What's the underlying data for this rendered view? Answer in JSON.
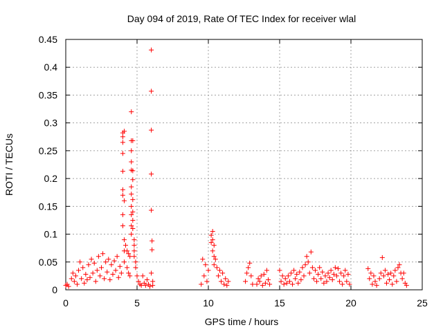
{
  "chart_data": {
    "type": "scatter",
    "title": "Day 094 of 2019, Rate Of TEC Index for receiver wlal",
    "xlabel": "GPS time / hours",
    "ylabel": "ROTI / TECUs",
    "xlim": [
      0,
      25
    ],
    "ylim": [
      0,
      0.45
    ],
    "x_ticks": [
      0,
      5,
      10,
      15,
      20,
      25
    ],
    "y_ticks": [
      0,
      0.05,
      0.1,
      0.15,
      0.2,
      0.25,
      0.3,
      0.35,
      0.4,
      0.45
    ],
    "x_tick_labels": [
      "0",
      "5",
      "10",
      "15",
      "20",
      "25"
    ],
    "y_tick_labels": [
      "0",
      "0.05",
      "0.1",
      "0.15",
      "0.2",
      "0.25",
      "0.3",
      "0.35",
      "0.4",
      "0.45"
    ],
    "grid": true,
    "marker": "+",
    "marker_color": "#ff0000",
    "series": [
      {
        "name": "ROTI",
        "points": [
          [
            0.0,
            0.008
          ],
          [
            0.1,
            0.01
          ],
          [
            0.2,
            0.006
          ],
          [
            0.4,
            0.02
          ],
          [
            0.5,
            0.03
          ],
          [
            0.6,
            0.015
          ],
          [
            0.7,
            0.025
          ],
          [
            0.8,
            0.01
          ],
          [
            0.9,
            0.035
          ],
          [
            1.0,
            0.05
          ],
          [
            1.1,
            0.02
          ],
          [
            1.2,
            0.04
          ],
          [
            1.3,
            0.012
          ],
          [
            1.4,
            0.028
          ],
          [
            1.5,
            0.018
          ],
          [
            1.6,
            0.045
          ],
          [
            1.7,
            0.022
          ],
          [
            1.8,
            0.055
          ],
          [
            1.9,
            0.03
          ],
          [
            2.0,
            0.048
          ],
          [
            2.1,
            0.015
          ],
          [
            2.2,
            0.035
          ],
          [
            2.3,
            0.06
          ],
          [
            2.4,
            0.025
          ],
          [
            2.5,
            0.04
          ],
          [
            2.6,
            0.065
          ],
          [
            2.7,
            0.02
          ],
          [
            2.8,
            0.05
          ],
          [
            2.9,
            0.032
          ],
          [
            3.0,
            0.055
          ],
          [
            3.1,
            0.018
          ],
          [
            3.2,
            0.045
          ],
          [
            3.3,
            0.028
          ],
          [
            3.4,
            0.052
          ],
          [
            3.5,
            0.035
          ],
          [
            3.6,
            0.06
          ],
          [
            3.7,
            0.022
          ],
          [
            3.8,
            0.042
          ],
          [
            3.9,
            0.03
          ],
          [
            4.0,
            0.282
          ],
          [
            4.0,
            0.275
          ],
          [
            4.0,
            0.265
          ],
          [
            4.0,
            0.245
          ],
          [
            4.0,
            0.213
          ],
          [
            4.0,
            0.18
          ],
          [
            4.0,
            0.17
          ],
          [
            4.0,
            0.135
          ],
          [
            4.0,
            0.115
          ],
          [
            4.1,
            0.285
          ],
          [
            4.1,
            0.16
          ],
          [
            4.1,
            0.09
          ],
          [
            4.1,
            0.07
          ],
          [
            4.1,
            0.05
          ],
          [
            4.2,
            0.08
          ],
          [
            4.3,
            0.07
          ],
          [
            4.3,
            0.04
          ],
          [
            4.4,
            0.065
          ],
          [
            4.4,
            0.03
          ],
          [
            4.5,
            0.06
          ],
          [
            4.5,
            0.025
          ],
          [
            4.6,
            0.32
          ],
          [
            4.6,
            0.268
          ],
          [
            4.6,
            0.25
          ],
          [
            4.6,
            0.23
          ],
          [
            4.6,
            0.215
          ],
          [
            4.6,
            0.185
          ],
          [
            4.6,
            0.172
          ],
          [
            4.6,
            0.15
          ],
          [
            4.6,
            0.135
          ],
          [
            4.6,
            0.115
          ],
          [
            4.6,
            0.1
          ],
          [
            4.7,
            0.268
          ],
          [
            4.7,
            0.214
          ],
          [
            4.7,
            0.198
          ],
          [
            4.7,
            0.162
          ],
          [
            4.7,
            0.14
          ],
          [
            4.7,
            0.125
          ],
          [
            4.7,
            0.11
          ],
          [
            4.8,
            0.09
          ],
          [
            4.8,
            0.08
          ],
          [
            4.8,
            0.07
          ],
          [
            4.8,
            0.06
          ],
          [
            4.9,
            0.05
          ],
          [
            4.9,
            0.04
          ],
          [
            5.0,
            0.025
          ],
          [
            5.1,
            0.015
          ],
          [
            5.2,
            0.01
          ],
          [
            5.3,
            0.008
          ],
          [
            5.4,
            0.025
          ],
          [
            5.5,
            0.012
          ],
          [
            5.6,
            0.008
          ],
          [
            5.7,
            0.018
          ],
          [
            5.8,
            0.01
          ],
          [
            5.9,
            0.006
          ],
          [
            6.0,
            0.431
          ],
          [
            6.0,
            0.357
          ],
          [
            6.0,
            0.287
          ],
          [
            6.0,
            0.208
          ],
          [
            6.0,
            0.143
          ],
          [
            6.05,
            0.088
          ],
          [
            6.05,
            0.072
          ],
          [
            6.0,
            0.03
          ],
          [
            6.1,
            0.015
          ],
          [
            6.1,
            0.008
          ],
          [
            9.5,
            0.01
          ],
          [
            9.6,
            0.055
          ],
          [
            9.7,
            0.025
          ],
          [
            9.8,
            0.045
          ],
          [
            9.9,
            0.015
          ],
          [
            10.0,
            0.035
          ],
          [
            10.2,
            0.098
          ],
          [
            10.2,
            0.085
          ],
          [
            10.3,
            0.105
          ],
          [
            10.3,
            0.09
          ],
          [
            10.3,
            0.07
          ],
          [
            10.4,
            0.08
          ],
          [
            10.4,
            0.06
          ],
          [
            10.4,
            0.045
          ],
          [
            10.5,
            0.055
          ],
          [
            10.6,
            0.04
          ],
          [
            10.7,
            0.025
          ],
          [
            10.8,
            0.035
          ],
          [
            10.9,
            0.015
          ],
          [
            11.0,
            0.03
          ],
          [
            11.1,
            0.01
          ],
          [
            11.2,
            0.02
          ],
          [
            11.3,
            0.008
          ],
          [
            11.4,
            0.015
          ],
          [
            12.6,
            0.015
          ],
          [
            12.7,
            0.03
          ],
          [
            12.8,
            0.04
          ],
          [
            12.9,
            0.048
          ],
          [
            13.0,
            0.025
          ],
          [
            13.1,
            0.01
          ],
          [
            13.4,
            0.01
          ],
          [
            13.5,
            0.02
          ],
          [
            13.6,
            0.015
          ],
          [
            13.7,
            0.025
          ],
          [
            13.8,
            0.008
          ],
          [
            13.9,
            0.028
          ],
          [
            14.0,
            0.012
          ],
          [
            14.1,
            0.035
          ],
          [
            14.2,
            0.018
          ],
          [
            14.3,
            0.01
          ],
          [
            15.0,
            0.035
          ],
          [
            15.1,
            0.015
          ],
          [
            15.2,
            0.025
          ],
          [
            15.3,
            0.01
          ],
          [
            15.4,
            0.02
          ],
          [
            15.5,
            0.012
          ],
          [
            15.6,
            0.025
          ],
          [
            15.7,
            0.015
          ],
          [
            15.8,
            0.03
          ],
          [
            15.9,
            0.01
          ],
          [
            16.0,
            0.035
          ],
          [
            16.1,
            0.02
          ],
          [
            16.2,
            0.028
          ],
          [
            16.3,
            0.012
          ],
          [
            16.4,
            0.032
          ],
          [
            16.5,
            0.018
          ],
          [
            16.6,
            0.04
          ],
          [
            16.7,
            0.025
          ],
          [
            16.8,
            0.045
          ],
          [
            16.9,
            0.06
          ],
          [
            17.0,
            0.05
          ],
          [
            17.1,
            0.03
          ],
          [
            17.2,
            0.068
          ],
          [
            17.3,
            0.04
          ],
          [
            17.4,
            0.02
          ],
          [
            17.5,
            0.035
          ],
          [
            17.6,
            0.015
          ],
          [
            17.7,
            0.028
          ],
          [
            17.8,
            0.04
          ],
          [
            17.9,
            0.02
          ],
          [
            18.0,
            0.032
          ],
          [
            18.1,
            0.012
          ],
          [
            18.2,
            0.025
          ],
          [
            18.3,
            0.015
          ],
          [
            18.4,
            0.03
          ],
          [
            18.5,
            0.022
          ],
          [
            18.6,
            0.035
          ],
          [
            18.7,
            0.018
          ],
          [
            18.8,
            0.028
          ],
          [
            18.9,
            0.04
          ],
          [
            19.0,
            0.025
          ],
          [
            19.1,
            0.038
          ],
          [
            19.2,
            0.015
          ],
          [
            19.3,
            0.03
          ],
          [
            19.4,
            0.01
          ],
          [
            19.5,
            0.025
          ],
          [
            19.6,
            0.035
          ],
          [
            19.7,
            0.015
          ],
          [
            19.8,
            0.028
          ],
          [
            19.9,
            0.01
          ],
          [
            21.2,
            0.038
          ],
          [
            21.3,
            0.02
          ],
          [
            21.4,
            0.03
          ],
          [
            21.5,
            0.01
          ],
          [
            21.6,
            0.025
          ],
          [
            21.7,
            0.015
          ],
          [
            21.8,
            0.008
          ],
          [
            22.0,
            0.02
          ],
          [
            22.1,
            0.03
          ],
          [
            22.2,
            0.058
          ],
          [
            22.3,
            0.025
          ],
          [
            22.4,
            0.035
          ],
          [
            22.5,
            0.012
          ],
          [
            22.6,
            0.028
          ],
          [
            22.7,
            0.018
          ],
          [
            22.8,
            0.03
          ],
          [
            22.9,
            0.01
          ],
          [
            23.0,
            0.025
          ],
          [
            23.1,
            0.035
          ],
          [
            23.2,
            0.015
          ],
          [
            23.3,
            0.04
          ],
          [
            23.4,
            0.045
          ],
          [
            23.5,
            0.03
          ],
          [
            23.6,
            0.02
          ],
          [
            23.7,
            0.03
          ],
          [
            23.8,
            0.012
          ],
          [
            23.9,
            0.008
          ]
        ]
      }
    ]
  }
}
